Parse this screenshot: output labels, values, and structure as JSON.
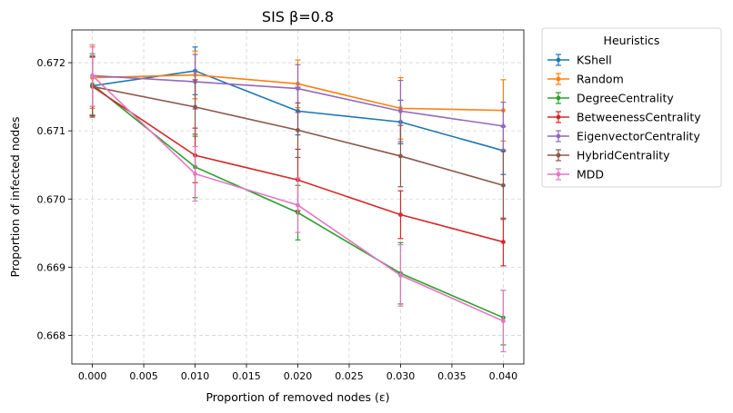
{
  "chart_data": {
    "type": "line",
    "title": "SIS β=0.8",
    "xlabel": "Proportion of removed nodes (ε)",
    "ylabel": "Proportion of infected nodes",
    "xlim": [
      -0.002,
      0.042
    ],
    "ylim": [
      0.66758,
      0.67248
    ],
    "x": [
      0.0,
      0.01,
      0.02,
      0.03,
      0.04
    ],
    "x_ticks": [
      "0.000",
      "0.005",
      "0.010",
      "0.015",
      "0.020",
      "0.025",
      "0.030",
      "0.035",
      "0.040"
    ],
    "x_tick_values": [
      0.0,
      0.005,
      0.01,
      0.015,
      0.02,
      0.025,
      0.03,
      0.035,
      0.04
    ],
    "y_ticks": [
      "0.668",
      "0.669",
      "0.670",
      "0.671",
      "0.672"
    ],
    "y_tick_values": [
      0.668,
      0.669,
      0.67,
      0.671,
      0.672
    ],
    "grid": true,
    "legend_title": "Heuristics",
    "legend_position": "outside-right-top",
    "series": [
      {
        "name": "KShell",
        "color": "#1f77b4",
        "values": [
          0.67166,
          0.67188,
          0.67129,
          0.67113,
          0.67071
        ],
        "errors": [
          0.00043,
          0.00035,
          0.00035,
          0.00032,
          0.00035
        ]
      },
      {
        "name": "Random",
        "color": "#ff7f0e",
        "values": [
          0.67178,
          0.67182,
          0.67169,
          0.67133,
          0.6713
        ],
        "errors": [
          0.00045,
          0.00035,
          0.00035,
          0.00045,
          0.00045
        ]
      },
      {
        "name": "DegreeCentrality",
        "color": "#2ca02c",
        "values": [
          0.67168,
          0.67047,
          0.6698,
          0.66891,
          0.66826
        ],
        "errors": [
          0.00045,
          0.00045,
          0.0004,
          0.00045,
          0.0004
        ]
      },
      {
        "name": "BetweenessCentrality",
        "color": "#d62728",
        "values": [
          0.67165,
          0.67064,
          0.67028,
          0.66977,
          0.66937
        ],
        "errors": [
          0.00043,
          0.0004,
          0.00045,
          0.00035,
          0.00035
        ]
      },
      {
        "name": "EigenvectorCentrality",
        "color": "#9467bd",
        "values": [
          0.67181,
          0.67172,
          0.67162,
          0.67129,
          0.67107
        ],
        "errors": [
          0.00045,
          0.0004,
          0.00035,
          0.00045,
          0.00035
        ]
      },
      {
        "name": "HybridCentrality",
        "color": "#8c564b",
        "values": [
          0.67165,
          0.67135,
          0.67101,
          0.67063,
          0.6702
        ],
        "errors": [
          0.00045,
          0.0004,
          0.0004,
          0.00045,
          0.0005
        ]
      },
      {
        "name": "MDD",
        "color": "#e377c2",
        "values": [
          0.67181,
          0.67037,
          0.66991,
          0.66888,
          0.66821
        ],
        "errors": [
          0.00045,
          0.0004,
          0.0004,
          0.00045,
          0.00045
        ]
      }
    ]
  }
}
